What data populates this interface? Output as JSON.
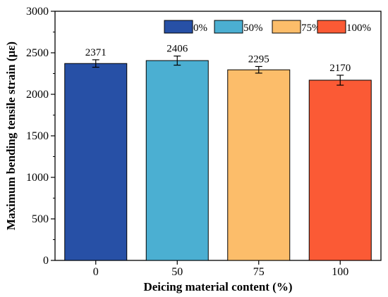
{
  "chart_data": {
    "type": "bar",
    "xlabel": "Deicing material content (%)",
    "ylabel": "Maximum bending tensile strain (με)",
    "categories": [
      "0",
      "50",
      "75",
      "100"
    ],
    "values": [
      2371,
      2406,
      2295,
      2170
    ],
    "errors": [
      45,
      55,
      40,
      60
    ],
    "data_labels": [
      "2371",
      "2406",
      "2295",
      "2170"
    ],
    "ylim": [
      0,
      3000
    ],
    "yticks": [
      0,
      500,
      1000,
      1500,
      2000,
      2500,
      3000
    ],
    "grid": false,
    "legend": {
      "placement": "top-right",
      "entries": [
        "0%",
        "50%",
        "75%",
        "100%"
      ]
    },
    "colors": [
      "#2750a6",
      "#4bafd2",
      "#fcbd6a",
      "#fb5a35"
    ]
  }
}
